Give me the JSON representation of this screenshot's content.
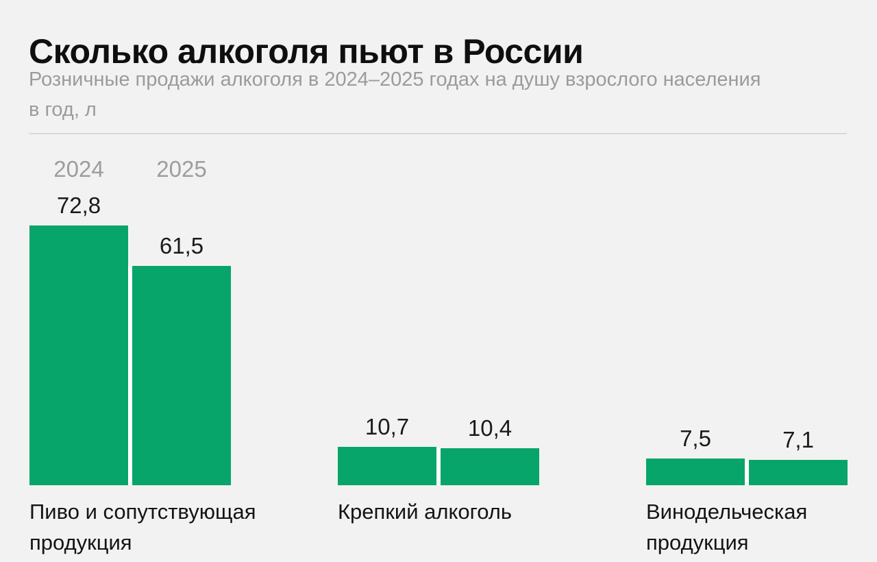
{
  "header": {
    "title": "Сколько алкоголя пьют в России",
    "subtitle_lines": [
      "Розничные продажи алкоголя в 2024–2025 годах на душу взрослого населения",
      "в год, л"
    ]
  },
  "chart_data": {
    "type": "bar",
    "title": "Сколько алкоголя пьют в России",
    "subtitle": "Розничные продажи алкоголя в 2024–2025 годах на душу взрослого населения в год, л",
    "unit": "л (литров на душу взрослого населения в год)",
    "legend": [
      "2024",
      "2025"
    ],
    "legend_position": "above first bar pair",
    "categories": [
      "Пиво и сопутствующая продукция",
      "Крепкий алкоголь",
      "Винодельческая продукция"
    ],
    "category_lines": [
      [
        "Пиво и сопутствующая",
        "продукция"
      ],
      [
        "Крепкий алкоголь"
      ],
      [
        "Винодельческая",
        "продукция"
      ]
    ],
    "series": [
      {
        "name": "2024",
        "values": [
          72.8,
          10.7,
          7.5
        ],
        "labels": [
          "72,8",
          "10,7",
          "7,5"
        ]
      },
      {
        "name": "2025",
        "values": [
          61.5,
          10.4,
          7.1
        ],
        "labels": [
          "61,5",
          "10,4",
          "7,1"
        ]
      }
    ],
    "ylim": [
      0,
      80
    ],
    "grid": false,
    "bar_color": "#07a569"
  },
  "colors": {
    "bar": "#07a569",
    "title_text": "#0f0f0f",
    "muted_text": "#9b9b9b",
    "value_text": "#1a1a1a",
    "divider": "#d9d9d9",
    "background": "#f2f2f2"
  }
}
